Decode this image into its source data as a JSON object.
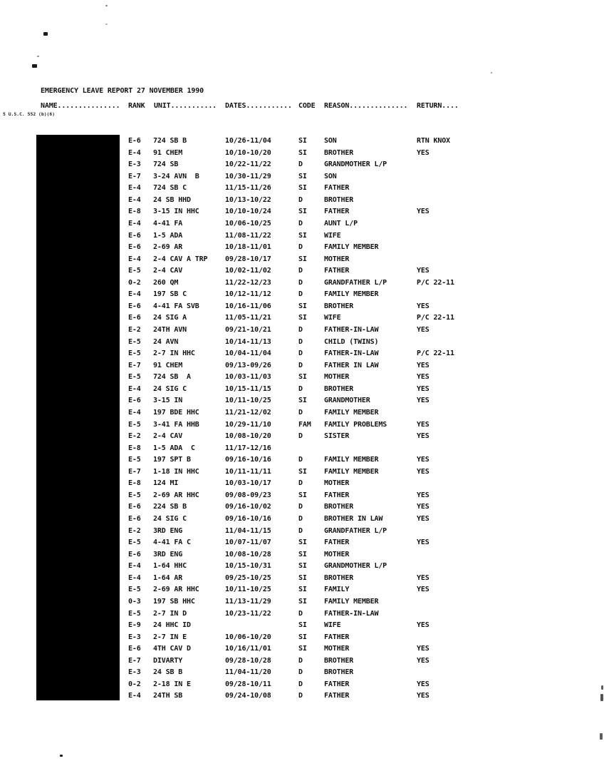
{
  "document": {
    "title": "EMERGENCY LEAVE REPORT 27 NOVEMBER 1990",
    "foia_note": "5 U.S.C. 552 (b)(6)",
    "redaction_color": "#000000"
  },
  "table": {
    "headers": {
      "name": "NAME...............",
      "rank": "RANK",
      "unit": "UNIT...........",
      "dates": "DATES...........",
      "code": "CODE",
      "reason": "REASON..............",
      "return": "RETURN...."
    },
    "rows": [
      {
        "rank": "E-6",
        "unit": "724 SB B",
        "dates": "10/26-11/04",
        "code": "SI",
        "reason": "SON",
        "ret": "RTN KNOX"
      },
      {
        "rank": "E-4",
        "unit": "91 CHEM",
        "dates": "10/10-10/20",
        "code": "SI",
        "reason": "BROTHER",
        "ret": "YES"
      },
      {
        "rank": "E-3",
        "unit": "724 SB",
        "dates": "10/22-11/22",
        "code": "D",
        "reason": "GRANDMOTHER L/P",
        "ret": ""
      },
      {
        "rank": "E-7",
        "unit": "3-24 AVN  B",
        "dates": "10/30-11/29",
        "code": "SI",
        "reason": "SON",
        "ret": ""
      },
      {
        "rank": "E-4",
        "unit": "724 SB C",
        "dates": "11/15-11/26",
        "code": "SI",
        "reason": "FATHER",
        "ret": ""
      },
      {
        "rank": "E-4",
        "unit": "24 SB HHD",
        "dates": "10/13-10/22",
        "code": "D",
        "reason": "BROTHER",
        "ret": ""
      },
      {
        "rank": "E-8",
        "unit": "3-15 IN HHC",
        "dates": "10/10-10/24",
        "code": "SI",
        "reason": "FATHER",
        "ret": "YES"
      },
      {
        "rank": "E-4",
        "unit": "4-41 FA",
        "dates": "10/06-10/25",
        "code": "D",
        "reason": "AUNT L/P",
        "ret": ""
      },
      {
        "rank": "E-6",
        "unit": "1-5 ADA",
        "dates": "11/08-11/22",
        "code": "SI",
        "reason": "WIFE",
        "ret": ""
      },
      {
        "rank": "E-6",
        "unit": "2-69 AR",
        "dates": "10/18-11/01",
        "code": "D",
        "reason": "FAMILY MEMBER",
        "ret": ""
      },
      {
        "rank": "E-4",
        "unit": "2-4 CAV A TRP",
        "dates": "09/28-10/17",
        "code": "SI",
        "reason": "MOTHER",
        "ret": ""
      },
      {
        "rank": "E-5",
        "unit": "2-4 CAV",
        "dates": "10/02-11/02",
        "code": "D",
        "reason": "FATHER",
        "ret": "YES"
      },
      {
        "rank": "0-2",
        "unit": "260 QM",
        "dates": "11/22-12/23",
        "code": "D",
        "reason": "GRANDFATHER L/P",
        "ret": "P/C 22-11"
      },
      {
        "rank": "E-4",
        "unit": "197 SB C",
        "dates": "10/12-11/12",
        "code": "D",
        "reason": "FAMILY MEMBER",
        "ret": ""
      },
      {
        "rank": "E-6",
        "unit": "4-41 FA SVB",
        "dates": "10/16-11/06",
        "code": "SI",
        "reason": "BROTHER",
        "ret": "YES"
      },
      {
        "rank": "E-6",
        "unit": "24 SIG A",
        "dates": "11/05-11/21",
        "code": "SI",
        "reason": "WIFE",
        "ret": "P/C 22-11"
      },
      {
        "rank": "E-2",
        "unit": "24TH AVN",
        "dates": "09/21-10/21",
        "code": "D",
        "reason": "FATHER-IN-LAW",
        "ret": "YES"
      },
      {
        "rank": "E-5",
        "unit": "24 AVN",
        "dates": "10/14-11/13",
        "code": "D",
        "reason": "CHILD (TWINS)",
        "ret": ""
      },
      {
        "rank": "E-5",
        "unit": "2-7 IN HHC",
        "dates": "10/04-11/04",
        "code": "D",
        "reason": "FATHER-IN-LAW",
        "ret": "P/C 22-11"
      },
      {
        "rank": "E-7",
        "unit": "91 CHEM",
        "dates": "09/13-09/26",
        "code": "D",
        "reason": "FATHER IN LAW",
        "ret": "YES"
      },
      {
        "rank": "E-5",
        "unit": "724 SB  A",
        "dates": "10/03-11/03",
        "code": "SI",
        "reason": "MOTHER",
        "ret": "YES"
      },
      {
        "rank": "E-4",
        "unit": "24 SIG C",
        "dates": "10/15-11/15",
        "code": "D",
        "reason": "BROTHER",
        "ret": "YES"
      },
      {
        "rank": "E-6",
        "unit": "3-15 IN",
        "dates": "10/11-10/25",
        "code": "SI",
        "reason": "GRANDMOTHER",
        "ret": "YES"
      },
      {
        "rank": "E-4",
        "unit": "197 BDE HHC",
        "dates": "11/21-12/02",
        "code": "D",
        "reason": "FAMILY MEMBER",
        "ret": ""
      },
      {
        "rank": "E-5",
        "unit": "3-41 FA HHB",
        "dates": "10/29-11/10",
        "code": "FAM",
        "reason": "FAMILY PROBLEMS",
        "ret": "YES"
      },
      {
        "rank": "E-2",
        "unit": "2-4 CAV",
        "dates": "10/08-10/20",
        "code": "D",
        "reason": "SISTER",
        "ret": "YES"
      },
      {
        "rank": "E-8",
        "unit": "1-5 ADA  C",
        "dates": "11/17-12/16",
        "code": "",
        "reason": "",
        "ret": ""
      },
      {
        "rank": "E-5",
        "unit": "197 SPT B",
        "dates": "09/16-10/16",
        "code": "D",
        "reason": "FAMILY MEMBER",
        "ret": "YES"
      },
      {
        "rank": "E-7",
        "unit": "1-18 IN HHC",
        "dates": "10/11-11/11",
        "code": "SI",
        "reason": "FAMILY MEMBER",
        "ret": "YES"
      },
      {
        "rank": "E-8",
        "unit": "124 MI",
        "dates": "10/03-10/17",
        "code": "D",
        "reason": "MOTHER",
        "ret": ""
      },
      {
        "rank": "E-5",
        "unit": "2-69 AR HHC",
        "dates": "09/08-09/23",
        "code": "SI",
        "reason": "FATHER",
        "ret": "YES"
      },
      {
        "rank": "E-6",
        "unit": "224 SB B",
        "dates": "09/16-10/02",
        "code": "D",
        "reason": "BROTHER",
        "ret": "YES"
      },
      {
        "rank": "E-6",
        "unit": "24 SIG C",
        "dates": "09/16-10/16",
        "code": "D",
        "reason": "BROTHER IN LAW",
        "ret": "YES"
      },
      {
        "rank": "E-2",
        "unit": "3RD ENG",
        "dates": "11/04-11/15",
        "code": "D",
        "reason": "GRANDFATHER L/P",
        "ret": ""
      },
      {
        "rank": "E-5",
        "unit": "4-41 FA C",
        "dates": "10/07-11/07",
        "code": "SI",
        "reason": "FATHER",
        "ret": "YES"
      },
      {
        "rank": "E-6",
        "unit": "3RD ENG",
        "dates": "10/08-10/28",
        "code": "SI",
        "reason": "MOTHER",
        "ret": ""
      },
      {
        "rank": "E-4",
        "unit": "1-64 HHC",
        "dates": "10/15-10/31",
        "code": "SI",
        "reason": "GRANDMOTHER L/P",
        "ret": ""
      },
      {
        "rank": "E-4",
        "unit": "1-64 AR",
        "dates": "09/25-10/25",
        "code": "SI",
        "reason": "BROTHER",
        "ret": "YES"
      },
      {
        "rank": "E-5",
        "unit": "2-69 AR HHC",
        "dates": "10/11-10/25",
        "code": "SI",
        "reason": "FAMILY",
        "ret": "YES"
      },
      {
        "rank": "0-3",
        "unit": "197 SB HHC",
        "dates": "11/13-11/29",
        "code": "SI",
        "reason": "FAMILY MEMBER",
        "ret": ""
      },
      {
        "rank": "E-5",
        "unit": "2-7 IN D",
        "dates": "10/23-11/22",
        "code": "D",
        "reason": "FATHER-IN-LAW",
        "ret": ""
      },
      {
        "rank": "E-9",
        "unit": "24 HHC ID",
        "dates": "",
        "code": "SI",
        "reason": "WIFE",
        "ret": "YES"
      },
      {
        "rank": "E-3",
        "unit": "2-7 IN E",
        "dates": "10/06-10/20",
        "code": "SI",
        "reason": "FATHER",
        "ret": ""
      },
      {
        "rank": "E-6",
        "unit": "4TH CAV D",
        "dates": "10/16/11/01",
        "code": "SI",
        "reason": "MOTHER",
        "ret": "YES"
      },
      {
        "rank": "E-7",
        "unit": "DIVARTY",
        "dates": "09/28-10/28",
        "code": "D",
        "reason": "BROTHER",
        "ret": "YES"
      },
      {
        "rank": "E-3",
        "unit": "24 SB B",
        "dates": "11/04-11/20",
        "code": "D",
        "reason": "BROTHER",
        "ret": ""
      },
      {
        "rank": "0-2",
        "unit": "2-18 IN E",
        "dates": "09/28-10/11",
        "code": "D",
        "reason": "FATHER",
        "ret": "YES"
      },
      {
        "rank": "E-4",
        "unit": "24TH SB",
        "dates": "09/24-10/08",
        "code": "D",
        "reason": "FATHER",
        "ret": "YES"
      }
    ]
  }
}
